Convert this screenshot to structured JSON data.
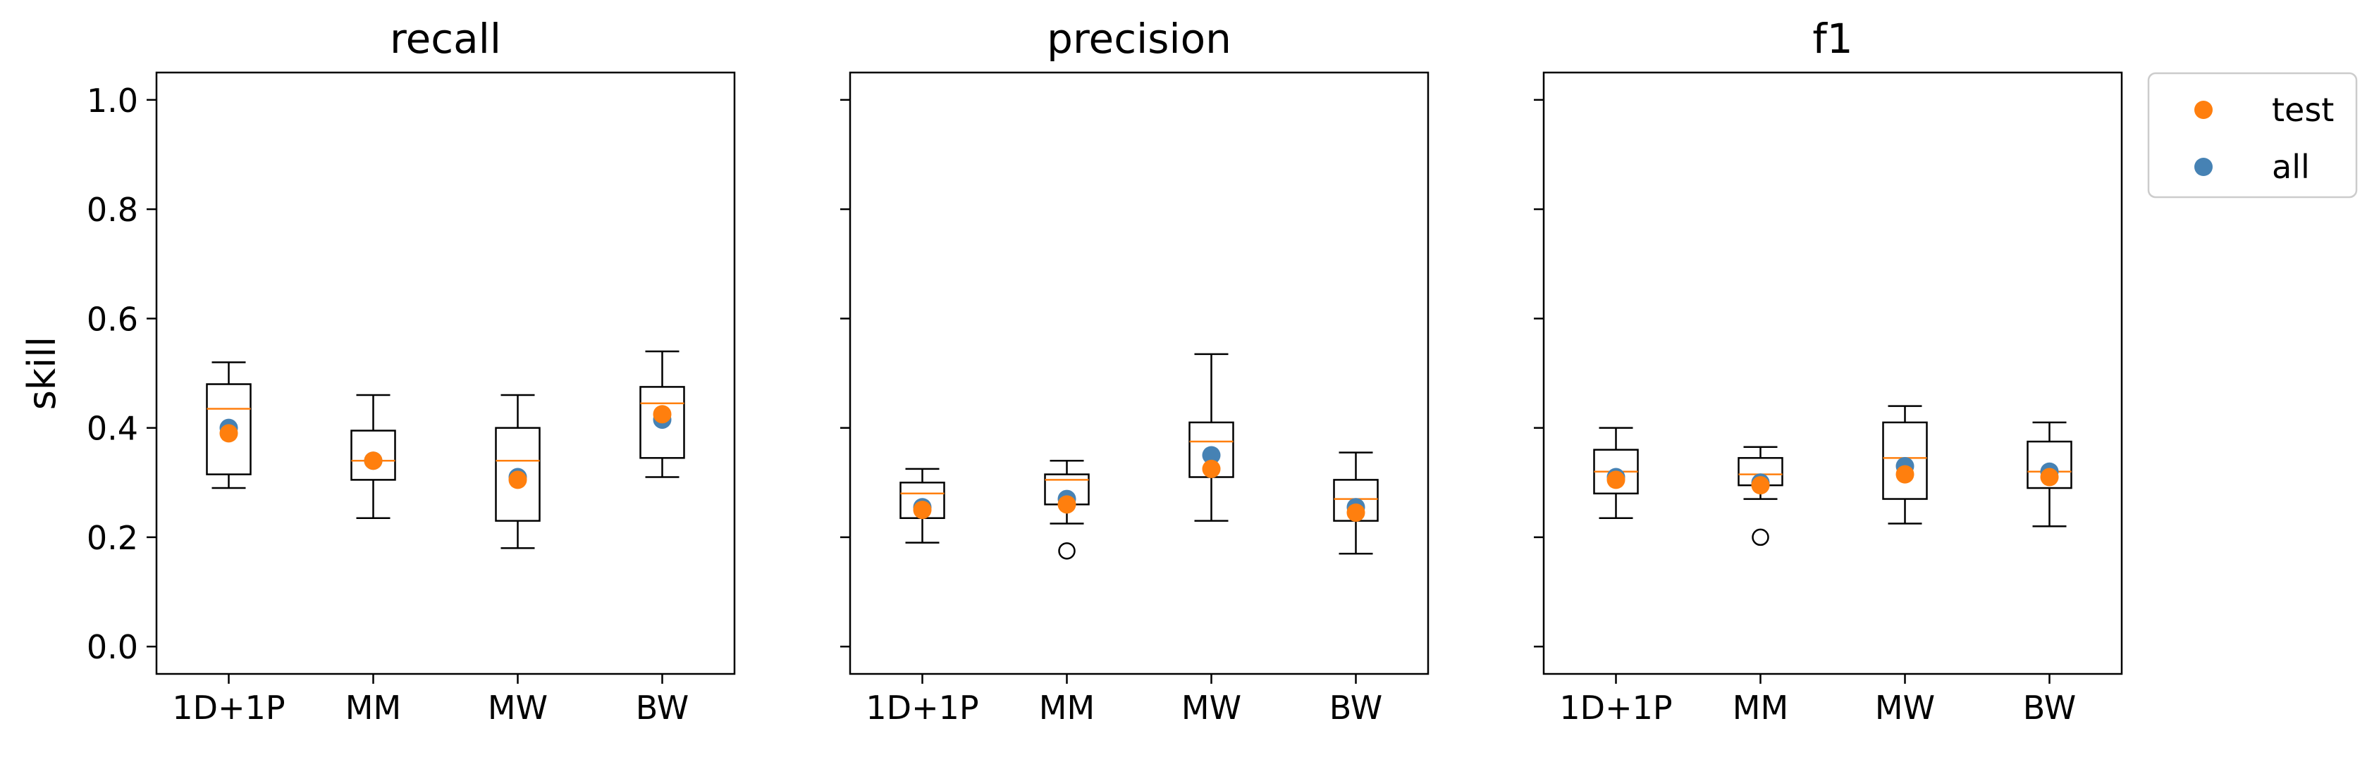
{
  "chart_data": {
    "type": "box",
    "y_axis": {
      "label": "skill",
      "range": [
        -0.05,
        1.05
      ],
      "ticks": [
        "0.0",
        "0.2",
        "0.4",
        "0.6",
        "0.8",
        "1.0"
      ],
      "shared": true
    },
    "categories": [
      "1D+1P",
      "MM",
      "MW",
      "BW"
    ],
    "legend": {
      "placement": "outside-top-right",
      "entries": [
        {
          "label": "test",
          "color": "#ff7f0e"
        },
        {
          "label": "all",
          "color": "#4682b4"
        }
      ]
    },
    "colors": {
      "box": "#000000",
      "median": "#ff7f0e",
      "test": "#ff7f0e",
      "all": "#4682b4"
    },
    "panels": [
      {
        "title": "recall",
        "boxes": [
          {
            "category": "1D+1P",
            "whisker_low": 0.29,
            "q1": 0.315,
            "median": 0.435,
            "q3": 0.48,
            "whisker_high": 0.52,
            "outliers": [],
            "test": 0.39,
            "all": 0.4
          },
          {
            "category": "MM",
            "whisker_low": 0.235,
            "q1": 0.305,
            "median": 0.34,
            "q3": 0.395,
            "whisker_high": 0.46,
            "outliers": [],
            "test": 0.34,
            "all": 0.34
          },
          {
            "category": "MW",
            "whisker_low": 0.18,
            "q1": 0.23,
            "median": 0.34,
            "q3": 0.4,
            "whisker_high": 0.46,
            "outliers": [],
            "test": 0.305,
            "all": 0.31
          },
          {
            "category": "BW",
            "whisker_low": 0.31,
            "q1": 0.345,
            "median": 0.445,
            "q3": 0.475,
            "whisker_high": 0.54,
            "outliers": [],
            "test": 0.425,
            "all": 0.415
          }
        ]
      },
      {
        "title": "precision",
        "boxes": [
          {
            "category": "1D+1P",
            "whisker_low": 0.19,
            "q1": 0.235,
            "median": 0.28,
            "q3": 0.3,
            "whisker_high": 0.325,
            "outliers": [],
            "test": 0.25,
            "all": 0.255
          },
          {
            "category": "MM",
            "whisker_low": 0.225,
            "q1": 0.26,
            "median": 0.305,
            "q3": 0.315,
            "whisker_high": 0.34,
            "outliers": [
              0.175
            ],
            "test": 0.26,
            "all": 0.27
          },
          {
            "category": "MW",
            "whisker_low": 0.23,
            "q1": 0.31,
            "median": 0.375,
            "q3": 0.41,
            "whisker_high": 0.535,
            "outliers": [],
            "test": 0.325,
            "all": 0.35
          },
          {
            "category": "BW",
            "whisker_low": 0.17,
            "q1": 0.23,
            "median": 0.27,
            "q3": 0.305,
            "whisker_high": 0.355,
            "outliers": [],
            "test": 0.245,
            "all": 0.255
          }
        ]
      },
      {
        "title": "f1",
        "boxes": [
          {
            "category": "1D+1P",
            "whisker_low": 0.235,
            "q1": 0.28,
            "median": 0.32,
            "q3": 0.36,
            "whisker_high": 0.4,
            "outliers": [],
            "test": 0.305,
            "all": 0.31
          },
          {
            "category": "MM",
            "whisker_low": 0.27,
            "q1": 0.295,
            "median": 0.315,
            "q3": 0.345,
            "whisker_high": 0.365,
            "outliers": [
              0.2
            ],
            "test": 0.295,
            "all": 0.3
          },
          {
            "category": "MW",
            "whisker_low": 0.225,
            "q1": 0.27,
            "median": 0.345,
            "q3": 0.41,
            "whisker_high": 0.44,
            "outliers": [],
            "test": 0.315,
            "all": 0.33
          },
          {
            "category": "BW",
            "whisker_low": 0.22,
            "q1": 0.29,
            "median": 0.32,
            "q3": 0.375,
            "whisker_high": 0.41,
            "outliers": [],
            "test": 0.31,
            "all": 0.32
          }
        ]
      }
    ]
  }
}
